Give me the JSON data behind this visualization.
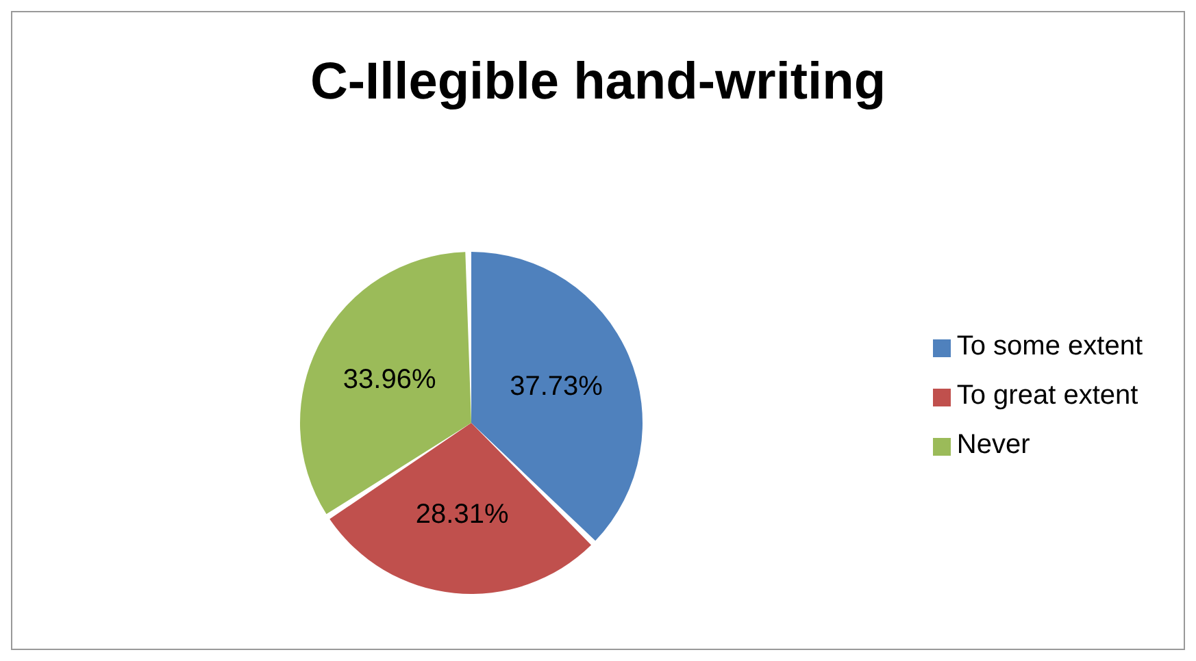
{
  "chart_data": {
    "type": "pie",
    "title": "C-Illegible hand-writing",
    "categories": [
      "To some extent",
      "To great extent",
      "Never"
    ],
    "values": [
      37.73,
      28.31,
      33.96
    ],
    "colors": [
      "#4f81bd",
      "#c0504d",
      "#9bbb59"
    ],
    "value_labels": [
      "37.73%",
      "28.31%",
      "33.96%"
    ],
    "legend": "right"
  }
}
